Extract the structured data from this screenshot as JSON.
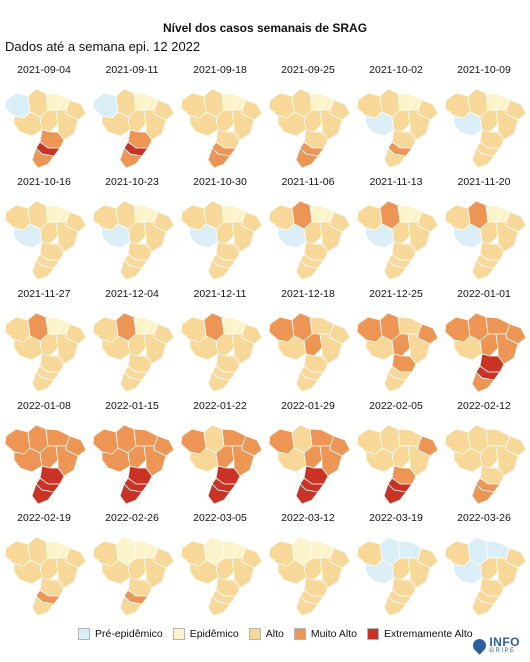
{
  "title": "Nível dos casos semanais de SRAG",
  "subtitle": "Dados até a semana epi. 12 2022",
  "colors": {
    "Pré-epidêmico": "#d9eef7",
    "Epidêmico": "#fbf3c9",
    "Alto": "#f8d898",
    "Muito Alto": "#ec9554",
    "Extremamente Alto": "#c93224"
  },
  "maps": [
    {
      "date": "2021-09-04",
      "regions": [
        "Pré-epidêmico",
        "Alto",
        "Epidêmico",
        "Alto",
        "Alto",
        "Alto",
        "Alto",
        "Muito Alto",
        "Extremamente Alto",
        "Muito Alto"
      ]
    },
    {
      "date": "2021-09-11",
      "regions": [
        "Pré-epidêmico",
        "Alto",
        "Epidêmico",
        "Alto",
        "Alto",
        "Alto",
        "Alto",
        "Muito Alto",
        "Extremamente Alto",
        "Muito Alto"
      ]
    },
    {
      "date": "2021-09-18",
      "regions": [
        "Alto",
        "Alto",
        "Epidêmico",
        "Alto",
        "Alto",
        "Alto",
        "Alto",
        "Alto",
        "Muito Alto",
        "Muito Alto"
      ]
    },
    {
      "date": "2021-09-25",
      "regions": [
        "Alto",
        "Alto",
        "Epidêmico",
        "Alto",
        "Alto",
        "Alto",
        "Alto",
        "Alto",
        "Muito Alto",
        "Muito Alto"
      ]
    },
    {
      "date": "2021-10-02",
      "regions": [
        "Alto",
        "Alto",
        "Epidêmico",
        "Alto",
        "Pré-epidêmico",
        "Alto",
        "Alto",
        "Alto",
        "Muito Alto",
        "Alto"
      ]
    },
    {
      "date": "2021-10-09",
      "regions": [
        "Alto",
        "Alto",
        "Epidêmico",
        "Alto",
        "Pré-epidêmico",
        "Alto",
        "Alto",
        "Alto",
        "Alto",
        "Alto"
      ]
    },
    {
      "date": "2021-10-16",
      "regions": [
        "Alto",
        "Alto",
        "Epidêmico",
        "Alto",
        "Pré-epidêmico",
        "Alto",
        "Alto",
        "Alto",
        "Alto",
        "Alto"
      ]
    },
    {
      "date": "2021-10-23",
      "regions": [
        "Alto",
        "Alto",
        "Epidêmico",
        "Alto",
        "Pré-epidêmico",
        "Alto",
        "Alto",
        "Alto",
        "Alto",
        "Alto"
      ]
    },
    {
      "date": "2021-10-30",
      "regions": [
        "Alto",
        "Alto",
        "Epidêmico",
        "Alto",
        "Pré-epidêmico",
        "Alto",
        "Alto",
        "Alto",
        "Alto",
        "Alto"
      ]
    },
    {
      "date": "2021-11-06",
      "regions": [
        "Alto",
        "Muito Alto",
        "Epidêmico",
        "Alto",
        "Pré-epidêmico",
        "Alto",
        "Alto",
        "Alto",
        "Alto",
        "Alto"
      ]
    },
    {
      "date": "2021-11-13",
      "regions": [
        "Alto",
        "Muito Alto",
        "Epidêmico",
        "Alto",
        "Pré-epidêmico",
        "Alto",
        "Alto",
        "Alto",
        "Alto",
        "Alto"
      ]
    },
    {
      "date": "2021-11-20",
      "regions": [
        "Alto",
        "Muito Alto",
        "Epidêmico",
        "Alto",
        "Pré-epidêmico",
        "Alto",
        "Alto",
        "Alto",
        "Alto",
        "Alto"
      ]
    },
    {
      "date": "2021-11-27",
      "regions": [
        "Alto",
        "Muito Alto",
        "Epidêmico",
        "Alto",
        "Alto",
        "Alto",
        "Alto",
        "Alto",
        "Alto",
        "Alto"
      ]
    },
    {
      "date": "2021-12-04",
      "regions": [
        "Alto",
        "Muito Alto",
        "Epidêmico",
        "Alto",
        "Alto",
        "Alto",
        "Alto",
        "Alto",
        "Alto",
        "Alto"
      ]
    },
    {
      "date": "2021-12-11",
      "regions": [
        "Alto",
        "Muito Alto",
        "Epidêmico",
        "Alto",
        "Alto",
        "Alto",
        "Alto",
        "Alto",
        "Alto",
        "Alto"
      ]
    },
    {
      "date": "2021-12-18",
      "regions": [
        "Muito Alto",
        "Muito Alto",
        "Alto",
        "Alto",
        "Alto",
        "Muito Alto",
        "Alto",
        "Alto",
        "Alto",
        "Alto"
      ]
    },
    {
      "date": "2021-12-25",
      "regions": [
        "Muito Alto",
        "Muito Alto",
        "Alto",
        "Muito Alto",
        "Alto",
        "Muito Alto",
        "Alto",
        "Muito Alto",
        "Alto",
        "Alto"
      ]
    },
    {
      "date": "2022-01-01",
      "regions": [
        "Muito Alto",
        "Muito Alto",
        "Muito Alto",
        "Muito Alto",
        "Alto",
        "Muito Alto",
        "Muito Alto",
        "Extremamente Alto",
        "Extremamente Alto",
        "Muito Alto"
      ]
    },
    {
      "date": "2022-01-08",
      "regions": [
        "Muito Alto",
        "Muito Alto",
        "Muito Alto",
        "Muito Alto",
        "Muito Alto",
        "Muito Alto",
        "Muito Alto",
        "Extremamente Alto",
        "Extremamente Alto",
        "Extremamente Alto"
      ]
    },
    {
      "date": "2022-01-15",
      "regions": [
        "Muito Alto",
        "Muito Alto",
        "Muito Alto",
        "Muito Alto",
        "Muito Alto",
        "Muito Alto",
        "Muito Alto",
        "Extremamente Alto",
        "Extremamente Alto",
        "Extremamente Alto"
      ]
    },
    {
      "date": "2022-01-22",
      "regions": [
        "Muito Alto",
        "Alto",
        "Muito Alto",
        "Muito Alto",
        "Alto",
        "Muito Alto",
        "Muito Alto",
        "Extremamente Alto",
        "Extremamente Alto",
        "Extremamente Alto"
      ]
    },
    {
      "date": "2022-01-29",
      "regions": [
        "Muito Alto",
        "Alto",
        "Muito Alto",
        "Muito Alto",
        "Alto",
        "Muito Alto",
        "Muito Alto",
        "Extremamente Alto",
        "Extremamente Alto",
        "Extremamente Alto"
      ]
    },
    {
      "date": "2022-02-05",
      "regions": [
        "Alto",
        "Alto",
        "Alto",
        "Muito Alto",
        "Alto",
        "Alto",
        "Alto",
        "Muito Alto",
        "Extremamente Alto",
        "Extremamente Alto"
      ]
    },
    {
      "date": "2022-02-12",
      "regions": [
        "Alto",
        "Alto",
        "Alto",
        "Alto",
        "Alto",
        "Alto",
        "Alto",
        "Alto",
        "Muito Alto",
        "Muito Alto"
      ]
    },
    {
      "date": "2022-02-19",
      "regions": [
        "Alto",
        "Alto",
        "Epidêmico",
        "Alto",
        "Alto",
        "Alto",
        "Alto",
        "Alto",
        "Muito Alto",
        "Alto"
      ]
    },
    {
      "date": "2022-02-26",
      "regions": [
        "Alto",
        "Epidêmico",
        "Epidêmico",
        "Alto",
        "Alto",
        "Alto",
        "Alto",
        "Alto",
        "Muito Alto",
        "Alto"
      ]
    },
    {
      "date": "2022-03-05",
      "regions": [
        "Alto",
        "Epidêmico",
        "Epidêmico",
        "Alto",
        "Alto",
        "Alto",
        "Alto",
        "Alto",
        "Alto",
        "Alto"
      ]
    },
    {
      "date": "2022-03-12",
      "regions": [
        "Alto",
        "Epidêmico",
        "Epidêmico",
        "Alto",
        "Alto",
        "Alto",
        "Alto",
        "Alto",
        "Alto",
        "Alto"
      ]
    },
    {
      "date": "2022-03-19",
      "regions": [
        "Alto",
        "Pré-epidêmico",
        "Pré-epidêmico",
        "Alto",
        "Pré-epidêmico",
        "Alto",
        "Alto",
        "Alto",
        "Alto",
        "Alto"
      ]
    },
    {
      "date": "2022-03-26",
      "regions": [
        "Alto",
        "Pré-epidêmico",
        "Pré-epidêmico",
        "Alto",
        "Pré-epidêmico",
        "Alto",
        "Alto",
        "Alto",
        "Alto",
        "Alto"
      ]
    }
  ],
  "legend": [
    {
      "label": "Pré-epidêmico",
      "color": "#d9eef7"
    },
    {
      "label": "Epidêmico",
      "color": "#fbf3c9"
    },
    {
      "label": "Alto",
      "color": "#f8d898"
    },
    {
      "label": "Muito Alto",
      "color": "#ec9554"
    },
    {
      "label": "Extremamente Alto",
      "color": "#c93224"
    }
  ],
  "logo": {
    "main": "INFO",
    "sub": "GRIPE"
  }
}
